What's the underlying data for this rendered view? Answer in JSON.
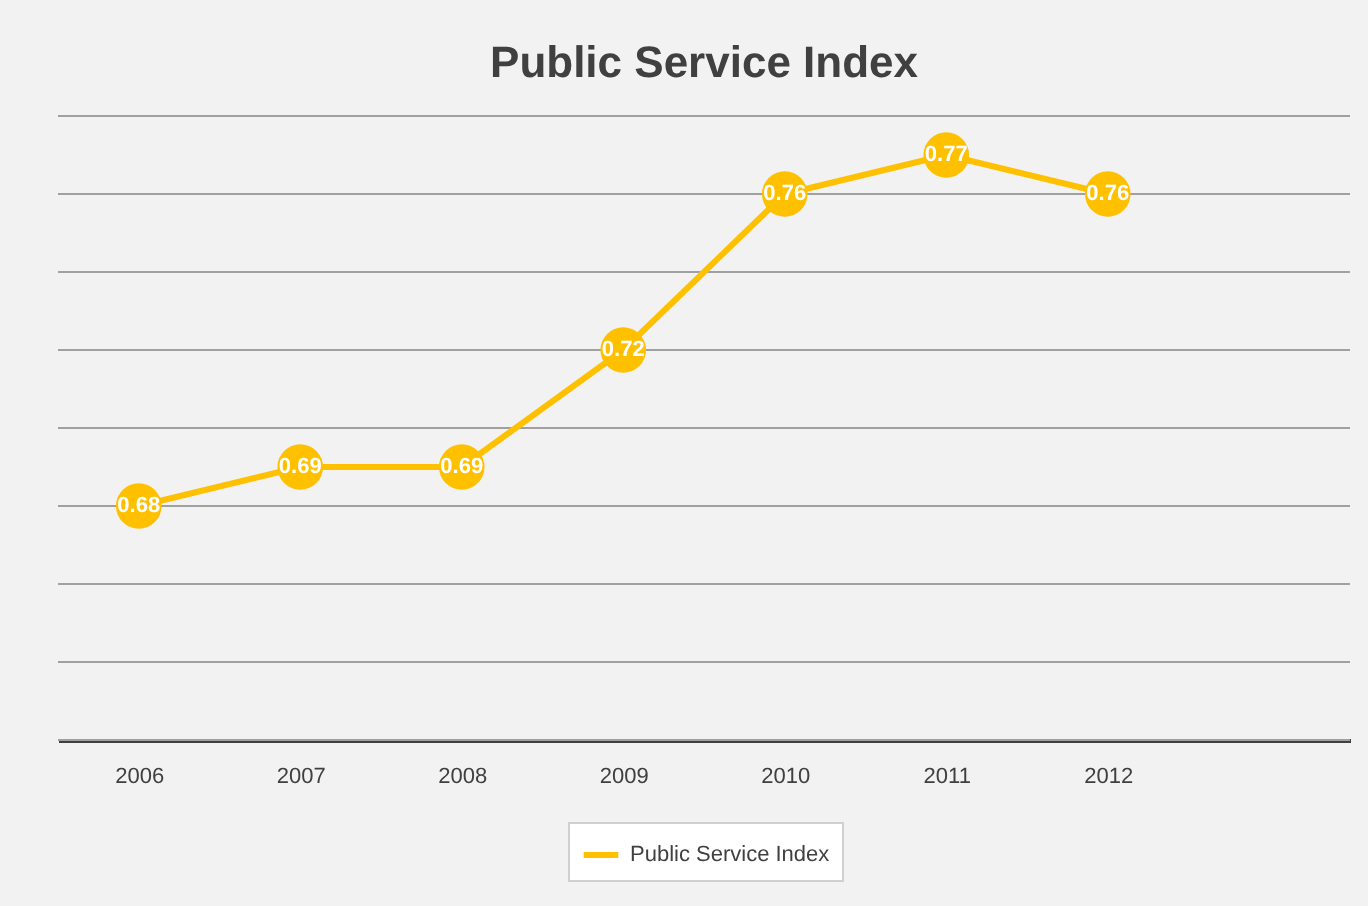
{
  "chart_data": {
    "type": "line",
    "title": "Public Service Index",
    "categories": [
      "2006",
      "2007",
      "2008",
      "2009",
      "2010",
      "2011",
      "2012",
      null
    ],
    "series": [
      {
        "name": "Public Service Index",
        "color": "#ffc000",
        "values": [
          0.68,
          0.69,
          0.69,
          0.72,
          0.76,
          0.77,
          0.76,
          null
        ]
      }
    ],
    "ylim": [
      0.62,
      0.78
    ],
    "yticks": [
      {
        "value": 0.62,
        "label": null
      },
      {
        "value": 0.64,
        "label": null
      },
      {
        "value": 0.66,
        "label": null
      },
      {
        "value": 0.68,
        "label": null
      },
      {
        "value": 0.7,
        "label": null
      },
      {
        "value": 0.72,
        "label": null
      },
      {
        "value": 0.74,
        "label": null
      },
      {
        "value": 0.76,
        "label": null
      },
      {
        "value": 0.78,
        "label": null
      }
    ],
    "tick_labels": "x",
    "grid": "y",
    "legend": "bottom",
    "marker": "circle",
    "line_style": "solid",
    "data_labels": true
  }
}
